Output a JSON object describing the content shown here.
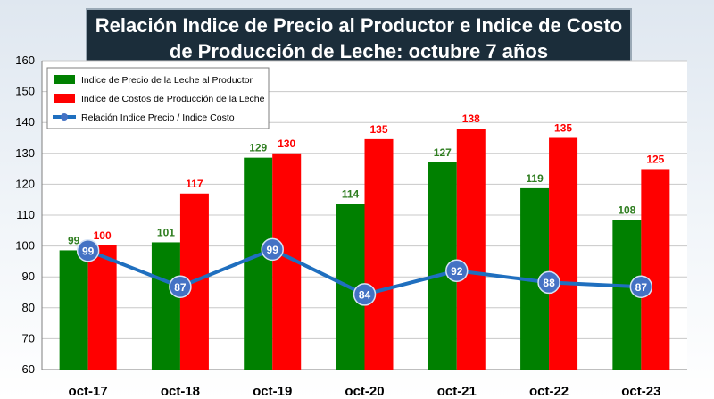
{
  "chart_data": {
    "type": "bar",
    "title_lines": [
      "Relación Indice de Precio al Productor e Indice de Costo",
      "de Producción de Leche: octubre 7 años"
    ],
    "categories": [
      "oct-17",
      "oct-18",
      "oct-19",
      "oct-20",
      "oct-21",
      "oct-22",
      "oct-23"
    ],
    "ylim": [
      60,
      160
    ],
    "yticks": [
      60,
      70,
      80,
      90,
      100,
      110,
      120,
      130,
      140,
      150,
      160
    ],
    "grid": true,
    "legend_position": "top-left",
    "series": [
      {
        "name": "Indice de Precio de la Leche al Productor",
        "type": "bar",
        "color": "#008000",
        "label_color": "#2e7d1f",
        "values": [
          98.6,
          101.2,
          128.6,
          113.6,
          127.1,
          118.7,
          108.4
        ],
        "labels": [
          "99",
          "101",
          "129",
          "114",
          "127",
          "119",
          "108"
        ]
      },
      {
        "name": "Indice de Costos de Producción de la Leche",
        "type": "bar",
        "color": "#ff0000",
        "label_color": "#ff0000",
        "values": [
          100.2,
          117.0,
          130.0,
          134.6,
          138.0,
          135.0,
          124.9
        ],
        "labels": [
          "100",
          "117",
          "130",
          "135",
          "138",
          "135",
          "125"
        ]
      },
      {
        "name": "Relación Indice Precio / Indice Costo",
        "type": "line",
        "color": "#1f6fbf",
        "marker_color": "#4472c4",
        "values": [
          98.5,
          86.8,
          98.9,
          84.3,
          92.0,
          88.2,
          86.8
        ],
        "labels": [
          "99",
          "87",
          "99",
          "84",
          "92",
          "88",
          "87"
        ]
      }
    ]
  }
}
